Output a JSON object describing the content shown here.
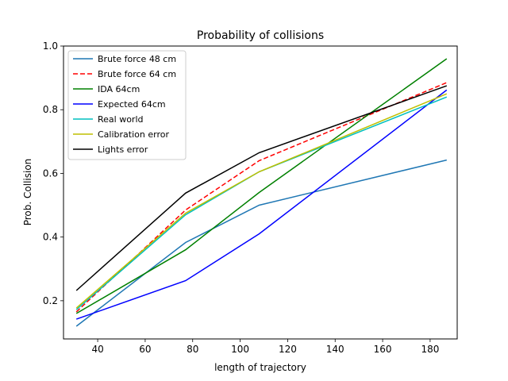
{
  "chart_data": {
    "type": "line",
    "title": "Probability of collisions",
    "xlabel": "length of trajectory",
    "ylabel": "Prob. Collision",
    "xlim": [
      25.6,
      191.4
    ],
    "ylim": [
      0.08,
      1.0
    ],
    "xticks": [
      40,
      60,
      80,
      100,
      120,
      140,
      160,
      180
    ],
    "yticks": [
      0.2,
      0.4,
      0.6,
      0.8,
      1.0
    ],
    "grid": false,
    "legend_position": "top-left",
    "x": [
      31,
      77,
      108,
      187
    ],
    "series": [
      {
        "name": "Brute force 48 cm",
        "color": "#1f77b4",
        "dash": "solid",
        "values": [
          0.12,
          0.383,
          0.5,
          0.642
        ]
      },
      {
        "name": "Brute force 64 cm",
        "color": "#ff0000",
        "dash": "dashed",
        "values": [
          0.165,
          0.485,
          0.64,
          0.885
        ]
      },
      {
        "name": "IDA 64cm",
        "color": "#008000",
        "dash": "solid",
        "values": [
          0.16,
          0.36,
          0.54,
          0.96
        ]
      },
      {
        "name": "Expected 64cm",
        "color": "#0000ff",
        "dash": "solid",
        "values": [
          0.142,
          0.263,
          0.41,
          0.862
        ]
      },
      {
        "name": "Real world",
        "color": "#00bfbf",
        "dash": "solid",
        "values": [
          0.172,
          0.47,
          0.605,
          0.84
        ]
      },
      {
        "name": "Calibration error",
        "color": "#bfbf00",
        "dash": "solid",
        "values": [
          0.177,
          0.475,
          0.605,
          0.85
        ]
      },
      {
        "name": "Lights error",
        "color": "#000000",
        "dash": "solid",
        "values": [
          0.232,
          0.538,
          0.665,
          0.875
        ]
      }
    ]
  }
}
